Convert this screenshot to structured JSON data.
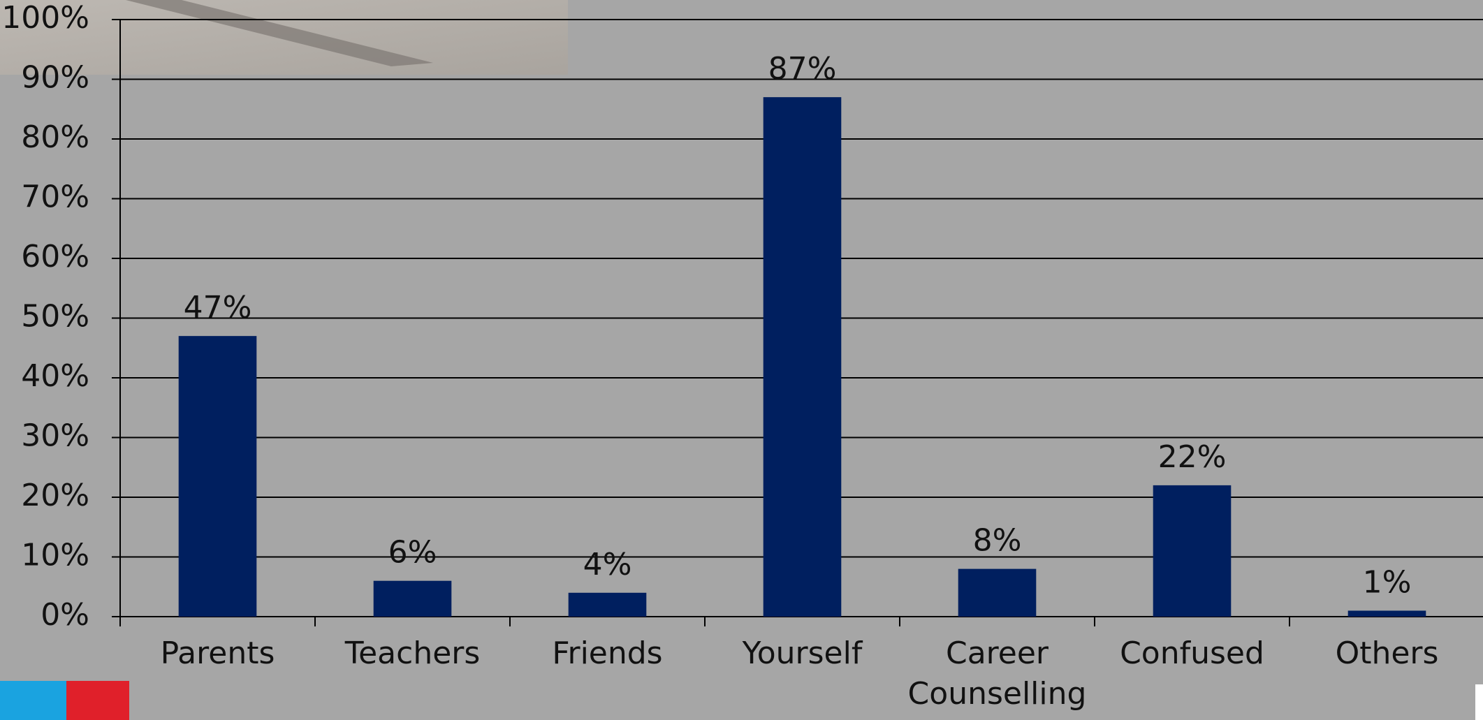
{
  "chart_data": {
    "type": "bar",
    "categories": [
      "Parents",
      "Teachers",
      "Friends",
      "Yourself",
      "Career Counselling",
      "Confused",
      "Others"
    ],
    "values": [
      47,
      6,
      4,
      87,
      8,
      22,
      1
    ],
    "value_labels": [
      "47%",
      "6%",
      "4%",
      "87%",
      "8%",
      "22%",
      "1%"
    ],
    "color": "#001f5f",
    "ylim": [
      0,
      100
    ],
    "yticks": [
      {
        "value": 0,
        "label": "0%"
      },
      {
        "value": 10,
        "label": "10%"
      },
      {
        "value": 20,
        "label": "20%"
      },
      {
        "value": 30,
        "label": "30%"
      },
      {
        "value": 40,
        "label": "40%"
      },
      {
        "value": 50,
        "label": "50%"
      },
      {
        "value": 60,
        "label": "60%"
      },
      {
        "value": 70,
        "label": "70%"
      },
      {
        "value": 80,
        "label": "80%"
      },
      {
        "value": 90,
        "label": "90%"
      },
      {
        "value": 100,
        "label": "100%"
      }
    ],
    "grid": true
  }
}
